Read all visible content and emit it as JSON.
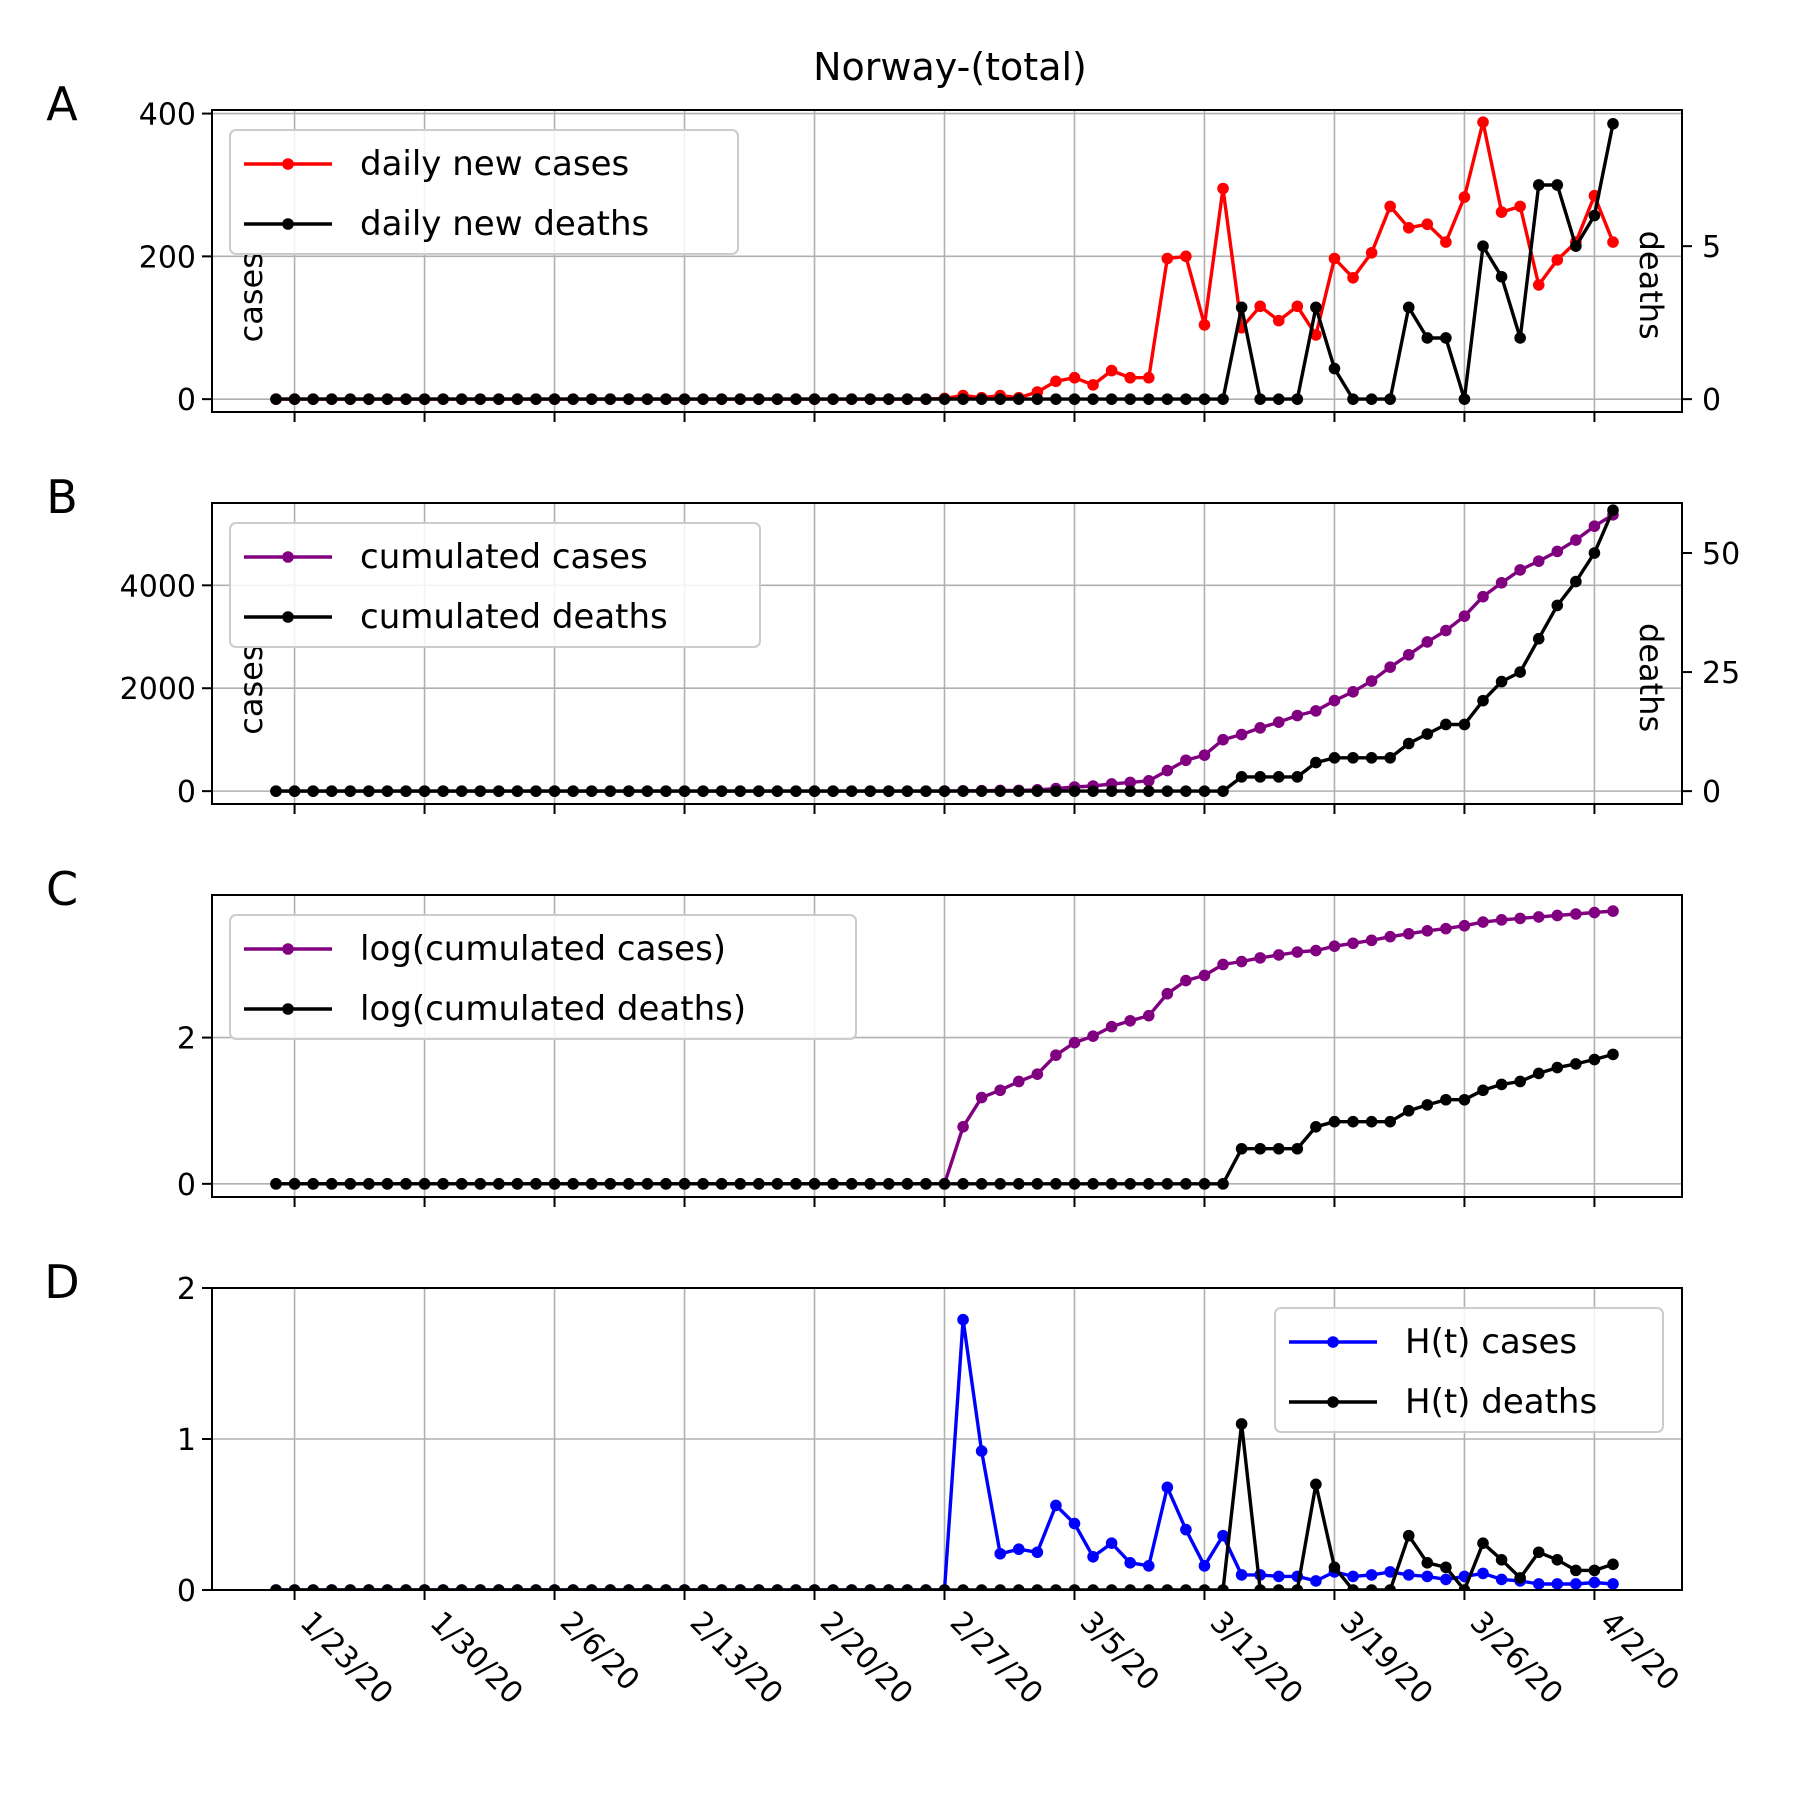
{
  "title": "Norway-(total)",
  "colors": {
    "cases_daily": "#ff0000",
    "cases_cum": "#800080",
    "ht_cases": "#0000ff",
    "deaths": "#000000",
    "grid": "#b0b0b0"
  },
  "x_dates": [
    "1/22/20",
    "1/23/20",
    "1/24/20",
    "1/25/20",
    "1/26/20",
    "1/27/20",
    "1/28/20",
    "1/29/20",
    "1/30/20",
    "1/31/20",
    "2/1/20",
    "2/2/20",
    "2/3/20",
    "2/4/20",
    "2/5/20",
    "2/6/20",
    "2/7/20",
    "2/8/20",
    "2/9/20",
    "2/10/20",
    "2/11/20",
    "2/12/20",
    "2/13/20",
    "2/14/20",
    "2/15/20",
    "2/16/20",
    "2/17/20",
    "2/18/20",
    "2/19/20",
    "2/20/20",
    "2/21/20",
    "2/22/20",
    "2/23/20",
    "2/24/20",
    "2/25/20",
    "2/26/20",
    "2/27/20",
    "2/28/20",
    "2/29/20",
    "3/1/20",
    "3/2/20",
    "3/3/20",
    "3/4/20",
    "3/5/20",
    "3/6/20",
    "3/7/20",
    "3/8/20",
    "3/9/20",
    "3/10/20",
    "3/11/20",
    "3/12/20",
    "3/13/20",
    "3/14/20",
    "3/15/20",
    "3/16/20",
    "3/17/20",
    "3/18/20",
    "3/19/20",
    "3/20/20",
    "3/21/20",
    "3/22/20",
    "3/23/20",
    "3/24/20",
    "3/25/20",
    "3/26/20",
    "3/27/20",
    "3/28/20",
    "3/29/20",
    "3/30/20",
    "3/31/20",
    "4/1/20",
    "4/2/20",
    "4/3/20"
  ],
  "x_tick_labels": [
    "1/23/20",
    "1/30/20",
    "2/6/20",
    "2/13/20",
    "2/20/20",
    "2/27/20",
    "3/5/20",
    "3/12/20",
    "3/19/20",
    "3/26/20",
    "4/2/20"
  ],
  "chart_data": [
    {
      "panel": "A",
      "type": "line",
      "title": "Norway-(total)",
      "ylabel": "cases",
      "ylabel_right": "deaths",
      "ylim": [
        -18,
        405
      ],
      "ylim_right": [
        -0.42,
        9.45
      ],
      "yticks": [
        0,
        200,
        400
      ],
      "yticks_right": [
        0,
        5
      ],
      "grid": true,
      "legend": "upper left",
      "series": [
        {
          "name": "daily new cases",
          "axis": "left",
          "color": "#ff0000",
          "values": [
            0,
            0,
            0,
            0,
            0,
            0,
            0,
            0,
            0,
            0,
            0,
            0,
            0,
            0,
            0,
            0,
            0,
            0,
            0,
            0,
            0,
            0,
            0,
            0,
            0,
            0,
            0,
            0,
            0,
            0,
            0,
            0,
            0,
            0,
            0,
            0,
            1,
            5,
            2,
            5,
            2,
            10,
            25,
            30,
            20,
            40,
            30,
            30,
            197,
            200,
            104,
            295,
            100,
            130,
            110,
            130,
            90,
            197,
            170,
            205,
            270,
            240,
            245,
            220,
            283,
            388,
            262,
            270,
            160,
            195,
            220,
            285,
            220
          ]
        },
        {
          "name": "daily new deaths",
          "axis": "right",
          "color": "#000000",
          "values": [
            0,
            0,
            0,
            0,
            0,
            0,
            0,
            0,
            0,
            0,
            0,
            0,
            0,
            0,
            0,
            0,
            0,
            0,
            0,
            0,
            0,
            0,
            0,
            0,
            0,
            0,
            0,
            0,
            0,
            0,
            0,
            0,
            0,
            0,
            0,
            0,
            0,
            0,
            0,
            0,
            0,
            0,
            0,
            0,
            0,
            0,
            0,
            0,
            0,
            0,
            0,
            0,
            3,
            0,
            0,
            0,
            3,
            1,
            0,
            0,
            0,
            3,
            2,
            2,
            0,
            5,
            4,
            2,
            7,
            7,
            5,
            6,
            9
          ]
        }
      ]
    },
    {
      "panel": "B",
      "type": "line",
      "ylabel": "cases",
      "ylabel_right": "deaths",
      "ylim": [
        -250,
        5600
      ],
      "ylim_right": [
        -2.7,
        60.5
      ],
      "yticks": [
        0,
        2000,
        4000
      ],
      "yticks_right": [
        0,
        25,
        50
      ],
      "grid": true,
      "legend": "upper left",
      "series": [
        {
          "name": "cumulated cases",
          "axis": "left",
          "color": "#800080",
          "values": [
            0,
            0,
            0,
            0,
            0,
            0,
            0,
            0,
            0,
            0,
            0,
            0,
            0,
            0,
            0,
            0,
            0,
            0,
            0,
            0,
            0,
            0,
            0,
            0,
            0,
            0,
            0,
            0,
            0,
            0,
            0,
            0,
            0,
            0,
            0,
            0,
            1,
            6,
            8,
            13,
            15,
            25,
            50,
            80,
            100,
            140,
            170,
            200,
            400,
            600,
            700,
            1000,
            1100,
            1230,
            1340,
            1470,
            1560,
            1760,
            1930,
            2140,
            2410,
            2650,
            2900,
            3120,
            3400,
            3780,
            4050,
            4300,
            4470,
            4660,
            4880,
            5150,
            5370
          ]
        },
        {
          "name": "cumulated deaths",
          "axis": "right",
          "color": "#000000",
          "values": [
            0,
            0,
            0,
            0,
            0,
            0,
            0,
            0,
            0,
            0,
            0,
            0,
            0,
            0,
            0,
            0,
            0,
            0,
            0,
            0,
            0,
            0,
            0,
            0,
            0,
            0,
            0,
            0,
            0,
            0,
            0,
            0,
            0,
            0,
            0,
            0,
            0,
            0,
            0,
            0,
            0,
            0,
            0,
            0,
            0,
            0,
            0,
            0,
            0,
            0,
            0,
            0,
            3,
            3,
            3,
            3,
            6,
            7,
            7,
            7,
            7,
            10,
            12,
            14,
            14,
            19,
            23,
            25,
            32,
            39,
            44,
            50,
            59
          ]
        }
      ]
    },
    {
      "panel": "C",
      "type": "line",
      "ylim": [
        -0.18,
        3.95
      ],
      "yticks": [
        0,
        2
      ],
      "grid": true,
      "legend": "upper left",
      "series": [
        {
          "name": "log(cumulated cases)",
          "axis": "left",
          "color": "#800080",
          "values": [
            0,
            0,
            0,
            0,
            0,
            0,
            0,
            0,
            0,
            0,
            0,
            0,
            0,
            0,
            0,
            0,
            0,
            0,
            0,
            0,
            0,
            0,
            0,
            0,
            0,
            0,
            0,
            0,
            0,
            0,
            0,
            0,
            0,
            0,
            0,
            0,
            0,
            0.78,
            1.18,
            1.28,
            1.4,
            1.5,
            1.76,
            1.93,
            2.02,
            2.15,
            2.23,
            2.3,
            2.6,
            2.78,
            2.85,
            3.0,
            3.04,
            3.09,
            3.13,
            3.17,
            3.19,
            3.25,
            3.29,
            3.33,
            3.38,
            3.42,
            3.46,
            3.49,
            3.53,
            3.58,
            3.61,
            3.63,
            3.65,
            3.67,
            3.69,
            3.71,
            3.73
          ]
        },
        {
          "name": "log(cumulated deaths)",
          "axis": "left",
          "color": "#000000",
          "values": [
            0,
            0,
            0,
            0,
            0,
            0,
            0,
            0,
            0,
            0,
            0,
            0,
            0,
            0,
            0,
            0,
            0,
            0,
            0,
            0,
            0,
            0,
            0,
            0,
            0,
            0,
            0,
            0,
            0,
            0,
            0,
            0,
            0,
            0,
            0,
            0,
            0,
            0,
            0,
            0,
            0,
            0,
            0,
            0,
            0,
            0,
            0,
            0,
            0,
            0,
            0,
            0,
            0.48,
            0.48,
            0.48,
            0.48,
            0.78,
            0.85,
            0.85,
            0.85,
            0.85,
            1.0,
            1.08,
            1.15,
            1.15,
            1.28,
            1.36,
            1.4,
            1.51,
            1.59,
            1.64,
            1.7,
            1.77
          ]
        }
      ]
    },
    {
      "panel": "D",
      "type": "line",
      "ylim": [
        0,
        2
      ],
      "yticks": [
        0,
        1,
        2
      ],
      "grid": true,
      "legend": "upper right",
      "series": [
        {
          "name": "H(t) cases",
          "axis": "left",
          "color": "#0000ff",
          "values": [
            0,
            0,
            0,
            0,
            0,
            0,
            0,
            0,
            0,
            0,
            0,
            0,
            0,
            0,
            0,
            0,
            0,
            0,
            0,
            0,
            0,
            0,
            0,
            0,
            0,
            0,
            0,
            0,
            0,
            0,
            0,
            0,
            0,
            0,
            0,
            0,
            0,
            1.79,
            0.92,
            0.24,
            0.27,
            0.25,
            0.56,
            0.44,
            0.22,
            0.31,
            0.18,
            0.16,
            0.68,
            0.4,
            0.16,
            0.36,
            0.1,
            0.1,
            0.09,
            0.09,
            0.06,
            0.12,
            0.09,
            0.1,
            0.12,
            0.1,
            0.09,
            0.07,
            0.09,
            0.11,
            0.07,
            0.06,
            0.04,
            0.04,
            0.04,
            0.05,
            0.04
          ]
        },
        {
          "name": "H(t) deaths",
          "axis": "left",
          "color": "#000000",
          "values": [
            0,
            0,
            0,
            0,
            0,
            0,
            0,
            0,
            0,
            0,
            0,
            0,
            0,
            0,
            0,
            0,
            0,
            0,
            0,
            0,
            0,
            0,
            0,
            0,
            0,
            0,
            0,
            0,
            0,
            0,
            0,
            0,
            0,
            0,
            0,
            0,
            0,
            0,
            0,
            0,
            0,
            0,
            0,
            0,
            0,
            0,
            0,
            0,
            0,
            0,
            0,
            0,
            1.1,
            0,
            0,
            0,
            0.7,
            0.15,
            0,
            0,
            0,
            0.36,
            0.18,
            0.15,
            0,
            0.31,
            0.2,
            0.08,
            0.25,
            0.2,
            0.13,
            0.13,
            0.17
          ]
        }
      ]
    }
  ]
}
